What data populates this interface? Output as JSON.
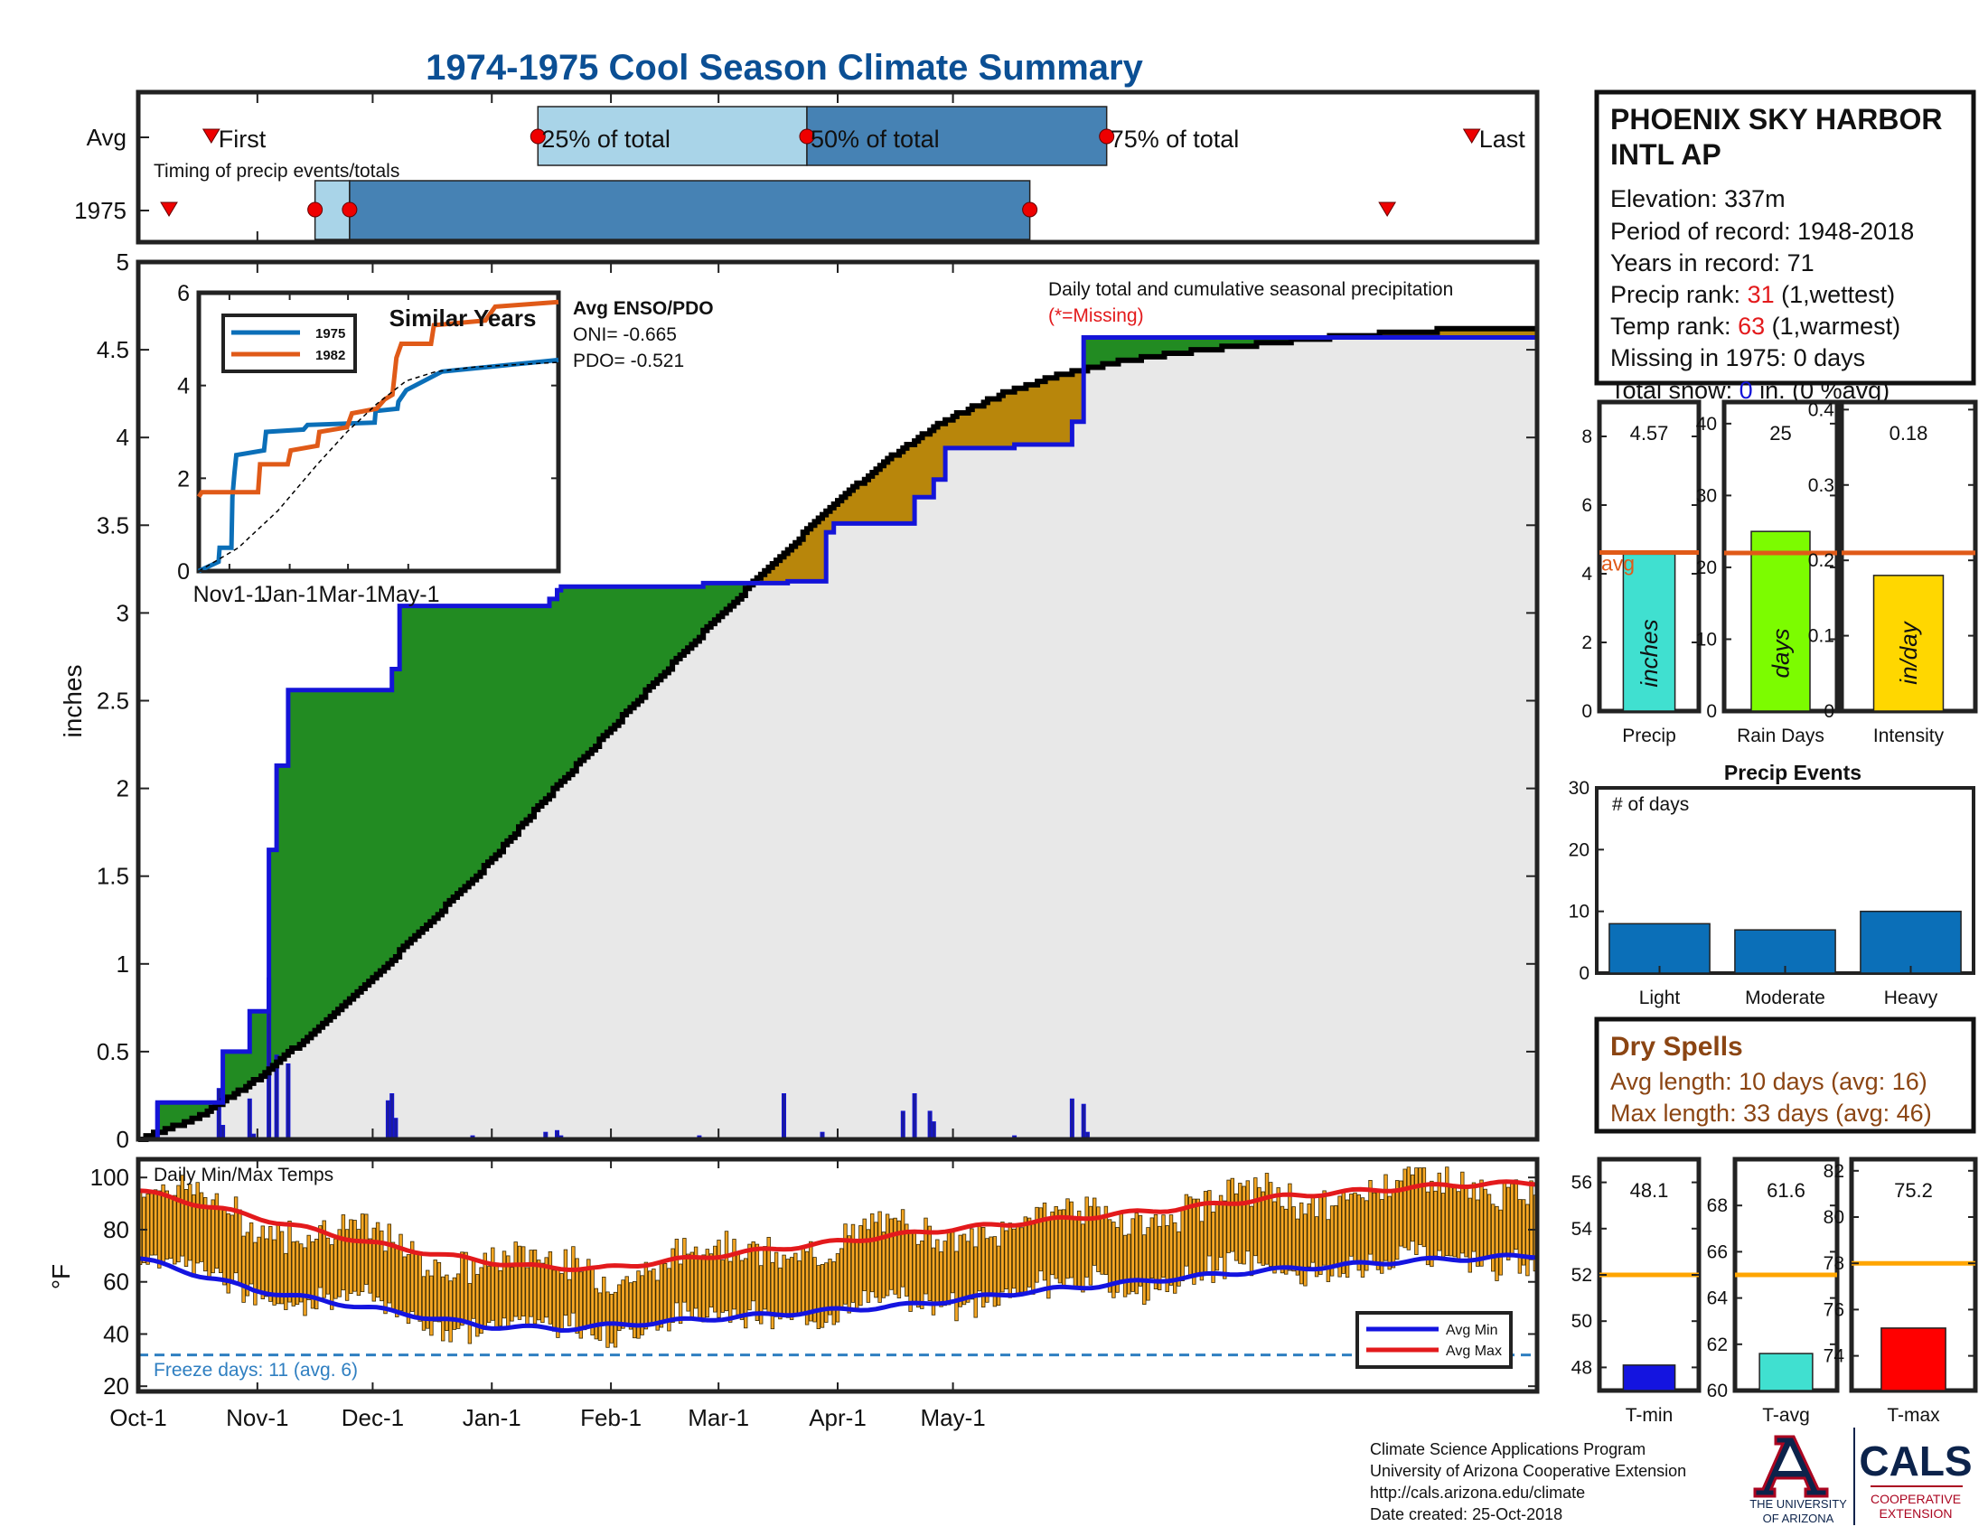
{
  "title": "1974-1975 Cool Season Climate Summary",
  "colors": {
    "title": "#0b4f94",
    "cum_1975": "#1414d8",
    "avg_cum": "#000000",
    "wetter": "#228b22",
    "drier": "#b8860b",
    "bar_light": "#a9d4e8",
    "bar_dark": "#4682b4",
    "red": "#e31a1c",
    "orange_line": "#e05a18",
    "precip_bar": "#40e0d0",
    "raindays_bar": "#7cfc00",
    "intensity_bar": "#ffd700",
    "events_bar": "#0b6fb8",
    "dry_text": "#8b4513",
    "temp_bar": "#f5a623",
    "avg_min": "#1414e0",
    "avg_max": "#e31a1c",
    "freeze": "#2f7fc1",
    "tmin_bar": "#1414e0",
    "tavg_bar": "#40e0d0",
    "tmax_bar": "#ff0000"
  },
  "timing": {
    "title": "Timing of precip events/totals",
    "rows": [
      "Avg",
      "1975"
    ],
    "labels": [
      "First",
      "25% of total",
      "50% of total",
      "75% of total",
      "Last"
    ],
    "avg_days": [
      19,
      104,
      174,
      252,
      347
    ],
    "y1975_days": [
      8,
      46,
      55,
      232,
      325
    ]
  },
  "station": {
    "name_line1": "PHOENIX SKY HARBOR",
    "name_line2": "INTL AP",
    "elevation": "Elevation: 337m",
    "period": "Period of record: 1948-2018",
    "years": "Years in record: 71",
    "precip_rank_label": "Precip rank: ",
    "precip_rank_value": "31",
    "precip_rank_note": " (1,wettest)",
    "temp_rank_label": "Temp rank: ",
    "temp_rank_value": "63",
    "temp_rank_note": " (1,warmest)",
    "missing": "Missing in 1975: 0 days",
    "snow_label": "Total snow: ",
    "snow_value": "0",
    "snow_note": " in. (0 %avg)"
  },
  "main_legend": {
    "line1": "Daily total and cumulative seasonal precipitation",
    "line2": "(*=Missing)"
  },
  "enso": {
    "title": "Avg ENSO/PDO",
    "oni": "ONI= -0.665",
    "pdo": "PDO= -0.521"
  },
  "chart_data": [
    {
      "id": "cumulative_precip",
      "type": "area",
      "ylabel": "inches",
      "ylim": [
        0,
        5
      ],
      "yticks": [
        0,
        0.5,
        1,
        1.5,
        2,
        2.5,
        3,
        3.5,
        4,
        4.5,
        5
      ],
      "x_unit": "days since Oct-1",
      "xlim": [
        0,
        364
      ],
      "xtick_labels": [
        "Oct-1",
        "Nov-1",
        "Dec-1",
        "Jan-1",
        "Feb-1",
        "Mar-1",
        "Apr-1",
        "May-1"
      ],
      "xtick_days": [
        0,
        31,
        61,
        92,
        123,
        151,
        182,
        212
      ],
      "series_1975_cumulative": [
        [
          0,
          0
        ],
        [
          4,
          0
        ],
        [
          5,
          0.21
        ],
        [
          21,
          0.21
        ],
        [
          22,
          0.5
        ],
        [
          28,
          0.5
        ],
        [
          29,
          0.73
        ],
        [
          33,
          0.73
        ],
        [
          34,
          1.65
        ],
        [
          35,
          1.65
        ],
        [
          36,
          2.13
        ],
        [
          38,
          2.13
        ],
        [
          39,
          2.56
        ],
        [
          65,
          2.56
        ],
        [
          66,
          2.68
        ],
        [
          67,
          2.68
        ],
        [
          68,
          3.04
        ],
        [
          106,
          3.04
        ],
        [
          107,
          3.08
        ],
        [
          108,
          3.08
        ],
        [
          109,
          3.13
        ],
        [
          110,
          3.15
        ],
        [
          146,
          3.15
        ],
        [
          147,
          3.17
        ],
        [
          168,
          3.17
        ],
        [
          169,
          3.18
        ],
        [
          178,
          3.18
        ],
        [
          179,
          3.46
        ],
        [
          180,
          3.46
        ],
        [
          181,
          3.51
        ],
        [
          198,
          3.51
        ],
        [
          199,
          3.51
        ],
        [
          201,
          3.51
        ],
        [
          202,
          3.66
        ],
        [
          206,
          3.66
        ],
        [
          207,
          3.76
        ],
        [
          209,
          3.76
        ],
        [
          210,
          3.94
        ],
        [
          227,
          3.94
        ],
        [
          228,
          3.96
        ],
        [
          242,
          3.96
        ],
        [
          243,
          4.09
        ],
        [
          245,
          4.09
        ],
        [
          246,
          4.57
        ],
        [
          364,
          4.57
        ]
      ],
      "series_avg_cumulative": [
        [
          0,
          0
        ],
        [
          15,
          0.12
        ],
        [
          30,
          0.33
        ],
        [
          45,
          0.6
        ],
        [
          60,
          0.9
        ],
        [
          75,
          1.22
        ],
        [
          90,
          1.55
        ],
        [
          105,
          1.92
        ],
        [
          120,
          2.27
        ],
        [
          135,
          2.62
        ],
        [
          150,
          2.96
        ],
        [
          165,
          3.28
        ],
        [
          180,
          3.6
        ],
        [
          195,
          3.88
        ],
        [
          210,
          4.1
        ],
        [
          225,
          4.25
        ],
        [
          240,
          4.36
        ],
        [
          255,
          4.43
        ],
        [
          270,
          4.48
        ],
        [
          285,
          4.52
        ],
        [
          300,
          4.55
        ],
        [
          315,
          4.58
        ],
        [
          330,
          4.6
        ],
        [
          345,
          4.62
        ],
        [
          364,
          4.62
        ]
      ],
      "daily_precip": [
        [
          5,
          0.21
        ],
        [
          21,
          0.29
        ],
        [
          22,
          0.08
        ],
        [
          29,
          0.23
        ],
        [
          30,
          0.03
        ],
        [
          34,
          0.92
        ],
        [
          36,
          0.48
        ],
        [
          39,
          0.43
        ],
        [
          65,
          0.22
        ],
        [
          66,
          0.26
        ],
        [
          67,
          0.12
        ],
        [
          68,
          0.01
        ],
        [
          86,
          0.01
        ],
        [
          87,
          0.02
        ],
        [
          106,
          0.04
        ],
        [
          107,
          0.01
        ],
        [
          109,
          0.05
        ],
        [
          110,
          0.02
        ],
        [
          146,
          0.02
        ],
        [
          168,
          0.26
        ],
        [
          169,
          0.01
        ],
        [
          178,
          0.04
        ],
        [
          199,
          0.16
        ],
        [
          202,
          0.26
        ],
        [
          206,
          0.16
        ],
        [
          207,
          0.1
        ],
        [
          228,
          0.02
        ],
        [
          243,
          0.23
        ],
        [
          246,
          0.2
        ],
        [
          247,
          0.04
        ]
      ],
      "legend": [
        "Daily total and cumulative seasonal precipitation"
      ]
    },
    {
      "id": "similar_years",
      "type": "line",
      "title": "Similar Years",
      "ylim": [
        0,
        6
      ],
      "yticks": [
        0,
        2,
        4,
        6
      ],
      "xtick_labels": [
        "Nov1-1",
        "Jan-1",
        "Mar-1",
        "May-1"
      ],
      "xtick_days": [
        31,
        92,
        151,
        212
      ],
      "series": [
        {
          "name": "1975",
          "points": [
            [
              0,
              0
            ],
            [
              20,
              0.2
            ],
            [
              21,
              0.5
            ],
            [
              33,
              0.5
            ],
            [
              34,
              1.6
            ],
            [
              36,
              2.1
            ],
            [
              38,
              2.5
            ],
            [
              66,
              2.6
            ],
            [
              68,
              3.0
            ],
            [
              106,
              3.05
            ],
            [
              110,
              3.15
            ],
            [
              178,
              3.2
            ],
            [
              179,
              3.45
            ],
            [
              201,
              3.5
            ],
            [
              202,
              3.65
            ],
            [
              210,
              3.9
            ],
            [
              246,
              4.3
            ],
            [
              364,
              4.55
            ]
          ]
        },
        {
          "name": "1982",
          "points": [
            [
              0,
              1.6
            ],
            [
              3,
              1.7
            ],
            [
              60,
              1.7
            ],
            [
              62,
              2.3
            ],
            [
              90,
              2.3
            ],
            [
              93,
              2.6
            ],
            [
              120,
              2.7
            ],
            [
              122,
              3.0
            ],
            [
              150,
              3.1
            ],
            [
              155,
              3.4
            ],
            [
              180,
              3.5
            ],
            [
              188,
              3.7
            ],
            [
              196,
              3.8
            ],
            [
              200,
              4.6
            ],
            [
              205,
              4.9
            ],
            [
              235,
              4.9
            ],
            [
              238,
              5.3
            ],
            [
              290,
              5.4
            ],
            [
              300,
              5.7
            ],
            [
              364,
              5.8
            ]
          ]
        },
        {
          "name": "avg",
          "points": [
            [
              0,
              0
            ],
            [
              40,
              0.5
            ],
            [
              80,
              1.3
            ],
            [
              120,
              2.3
            ],
            [
              150,
              3.0
            ],
            [
              180,
              3.6
            ],
            [
              210,
              4.1
            ],
            [
              240,
              4.3
            ],
            [
              280,
              4.4
            ],
            [
              364,
              4.5
            ]
          ]
        }
      ]
    },
    {
      "id": "precip_total",
      "type": "bar",
      "value_label": "4.57",
      "values": [
        4.57
      ],
      "avg": 4.62,
      "ylim": [
        0,
        9
      ],
      "yticks": [
        0,
        2,
        4,
        6,
        8
      ],
      "unit": "inches",
      "xlabel": "Precip",
      "avg_label": "avg"
    },
    {
      "id": "rain_days",
      "type": "bar",
      "value_label": "25",
      "values": [
        25
      ],
      "avg": 22,
      "ylim": [
        0,
        43
      ],
      "yticks": [
        0,
        10,
        20,
        30,
        40
      ],
      "unit": "days",
      "xlabel": "Rain Days"
    },
    {
      "id": "intensity",
      "type": "bar",
      "value_label": "0.18",
      "values": [
        0.18
      ],
      "avg": 0.21,
      "ylim": [
        0,
        0.41
      ],
      "yticks": [
        0,
        0.1,
        0.2,
        0.3,
        0.4
      ],
      "unit": "in/day",
      "xlabel": "Intensity"
    },
    {
      "id": "precip_events",
      "type": "bar",
      "title": "Precip Events",
      "ylabel": "# of days",
      "categories": [
        "Light",
        "Moderate",
        "Heavy"
      ],
      "values": [
        8,
        7,
        10
      ],
      "ylim": [
        0,
        30
      ],
      "yticks": [
        0,
        10,
        20,
        30
      ]
    },
    {
      "id": "daily_temps",
      "type": "bar",
      "title": "Daily Min/Max Temps",
      "ylabel": "°F",
      "ylim": [
        18,
        107
      ],
      "yticks": [
        20,
        40,
        60,
        80,
        100
      ],
      "freeze_line": 32,
      "freeze_label": "Freeze days: 11 (avg. 6)",
      "legend": [
        "Avg Min",
        "Avg Max"
      ],
      "avg_min_anchors": [
        [
          0,
          69
        ],
        [
          30,
          57
        ],
        [
          60,
          50
        ],
        [
          90,
          43
        ],
        [
          110,
          42
        ],
        [
          140,
          45
        ],
        [
          170,
          48
        ],
        [
          200,
          51
        ],
        [
          230,
          56
        ],
        [
          260,
          60
        ],
        [
          290,
          64
        ],
        [
          330,
          68
        ],
        [
          364,
          70
        ]
      ],
      "avg_max_anchors": [
        [
          0,
          95
        ],
        [
          30,
          85
        ],
        [
          60,
          75
        ],
        [
          80,
          70
        ],
        [
          100,
          66
        ],
        [
          120,
          65
        ],
        [
          150,
          70
        ],
        [
          180,
          75
        ],
        [
          210,
          80
        ],
        [
          240,
          84
        ],
        [
          270,
          88
        ],
        [
          300,
          93
        ],
        [
          340,
          97
        ],
        [
          364,
          98
        ]
      ],
      "daily_bars_note": "min/max bar per day"
    },
    {
      "id": "tmin",
      "type": "bar",
      "value_label": "48.1",
      "values": [
        48.1
      ],
      "avg": 52,
      "ylim": [
        47,
        57
      ],
      "yticks": [
        48,
        50,
        52,
        54,
        56
      ],
      "xlabel": "T-min"
    },
    {
      "id": "tavg",
      "type": "bar",
      "value_label": "61.6",
      "values": [
        61.6
      ],
      "avg": 65,
      "ylim": [
        60,
        70
      ],
      "yticks": [
        60,
        62,
        64,
        66,
        68
      ],
      "xlabel": "T-avg"
    },
    {
      "id": "tmax",
      "type": "bar",
      "value_label": "75.2",
      "values": [
        75.2
      ],
      "avg": 78,
      "ylim": [
        72.5,
        82.5
      ],
      "yticks": [
        74,
        76,
        78,
        80,
        82
      ],
      "xlabel": "T-max"
    }
  ],
  "dry_spells": {
    "title": "Dry Spells",
    "avg_length": "Avg length: 10 days (avg: 16)",
    "max_length": "Max length: 33 days (avg: 46)"
  },
  "footer": {
    "line1": "Climate Science Applications Program",
    "line2": "University of Arizona Cooperative Extension",
    "line3": "http://cals.arizona.edu/climate",
    "line4": " Date created: 25-Oct-2018"
  },
  "logos": {
    "ua_line1": "THE UNIVERSITY",
    "ua_line2": "OF ARIZONA",
    "cals": "CALS",
    "cals_sub1": "COOPERATIVE",
    "cals_sub2": "EXTENSION"
  }
}
